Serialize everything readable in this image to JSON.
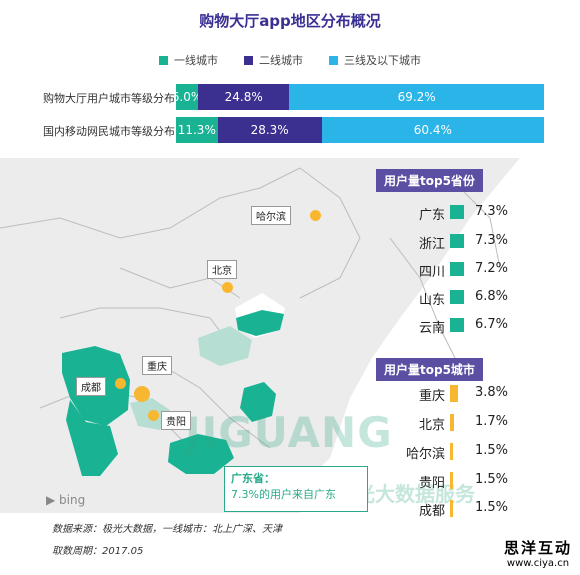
{
  "title": "购物大厅app地区分布概况",
  "legend": [
    {
      "label": "一线城市",
      "color": "#19b394"
    },
    {
      "label": "二线城市",
      "color": "#3b2f8f"
    },
    {
      "label": "三线及以下城市",
      "color": "#2bb4e8"
    }
  ],
  "chart_data": [
    {
      "type": "bar",
      "orientation": "horizontal-stacked-100",
      "categories": [
        "购物大厅用户城市等级分布",
        "国内移动网民城市等级分布"
      ],
      "series": [
        {
          "name": "一线城市",
          "values": [
            6.0,
            11.3
          ],
          "labels": [
            "6.0%",
            "11.3%"
          ]
        },
        {
          "name": "二线城市",
          "values": [
            24.8,
            28.3
          ],
          "labels": [
            "24.8%",
            "28.3%"
          ]
        },
        {
          "name": "三线及以下城市",
          "values": [
            69.2,
            60.4
          ],
          "labels": [
            "69.2%",
            "60.4%"
          ]
        }
      ]
    }
  ],
  "map": {
    "city_labels": [
      "哈尔滨",
      "北京",
      "重庆",
      "成都",
      "贵阳"
    ],
    "watermark": "JIGUANG",
    "watermark_sub": "极光大数据服务",
    "bing_label": "bing",
    "callout_title": "广东省：",
    "callout_text": "7.3%的用户来自广东"
  },
  "top_provinces": {
    "heading": "用户量top5省份",
    "items": [
      {
        "name": "广东",
        "value": "7.3%"
      },
      {
        "name": "浙江",
        "value": "7.3%"
      },
      {
        "name": "四川",
        "value": "7.2%"
      },
      {
        "name": "山东",
        "value": "6.8%"
      },
      {
        "name": "云南",
        "value": "6.7%"
      }
    ]
  },
  "top_cities": {
    "heading": "用户量top5城市",
    "items": [
      {
        "name": "重庆",
        "value": "3.8%"
      },
      {
        "name": "北京",
        "value": "1.7%"
      },
      {
        "name": "哈尔滨",
        "value": "1.5%"
      },
      {
        "name": "贵阳",
        "value": "1.5%"
      },
      {
        "name": "成都",
        "value": "1.5%"
      }
    ]
  },
  "footer": {
    "source": "数据来源：极光大数据，一线城市：北上广深、天津",
    "period": "取数周期：2017.05"
  },
  "brand": {
    "name": "思洋互动",
    "url": "www.ciya.cn"
  },
  "colors": {
    "province_fill": "#19b394",
    "city_bar": "#f7b731",
    "panel_header": "#5a4fa2",
    "map_land": "#ececec",
    "map_sea": "#ffffff",
    "highlight_light": "#b7ded3"
  }
}
